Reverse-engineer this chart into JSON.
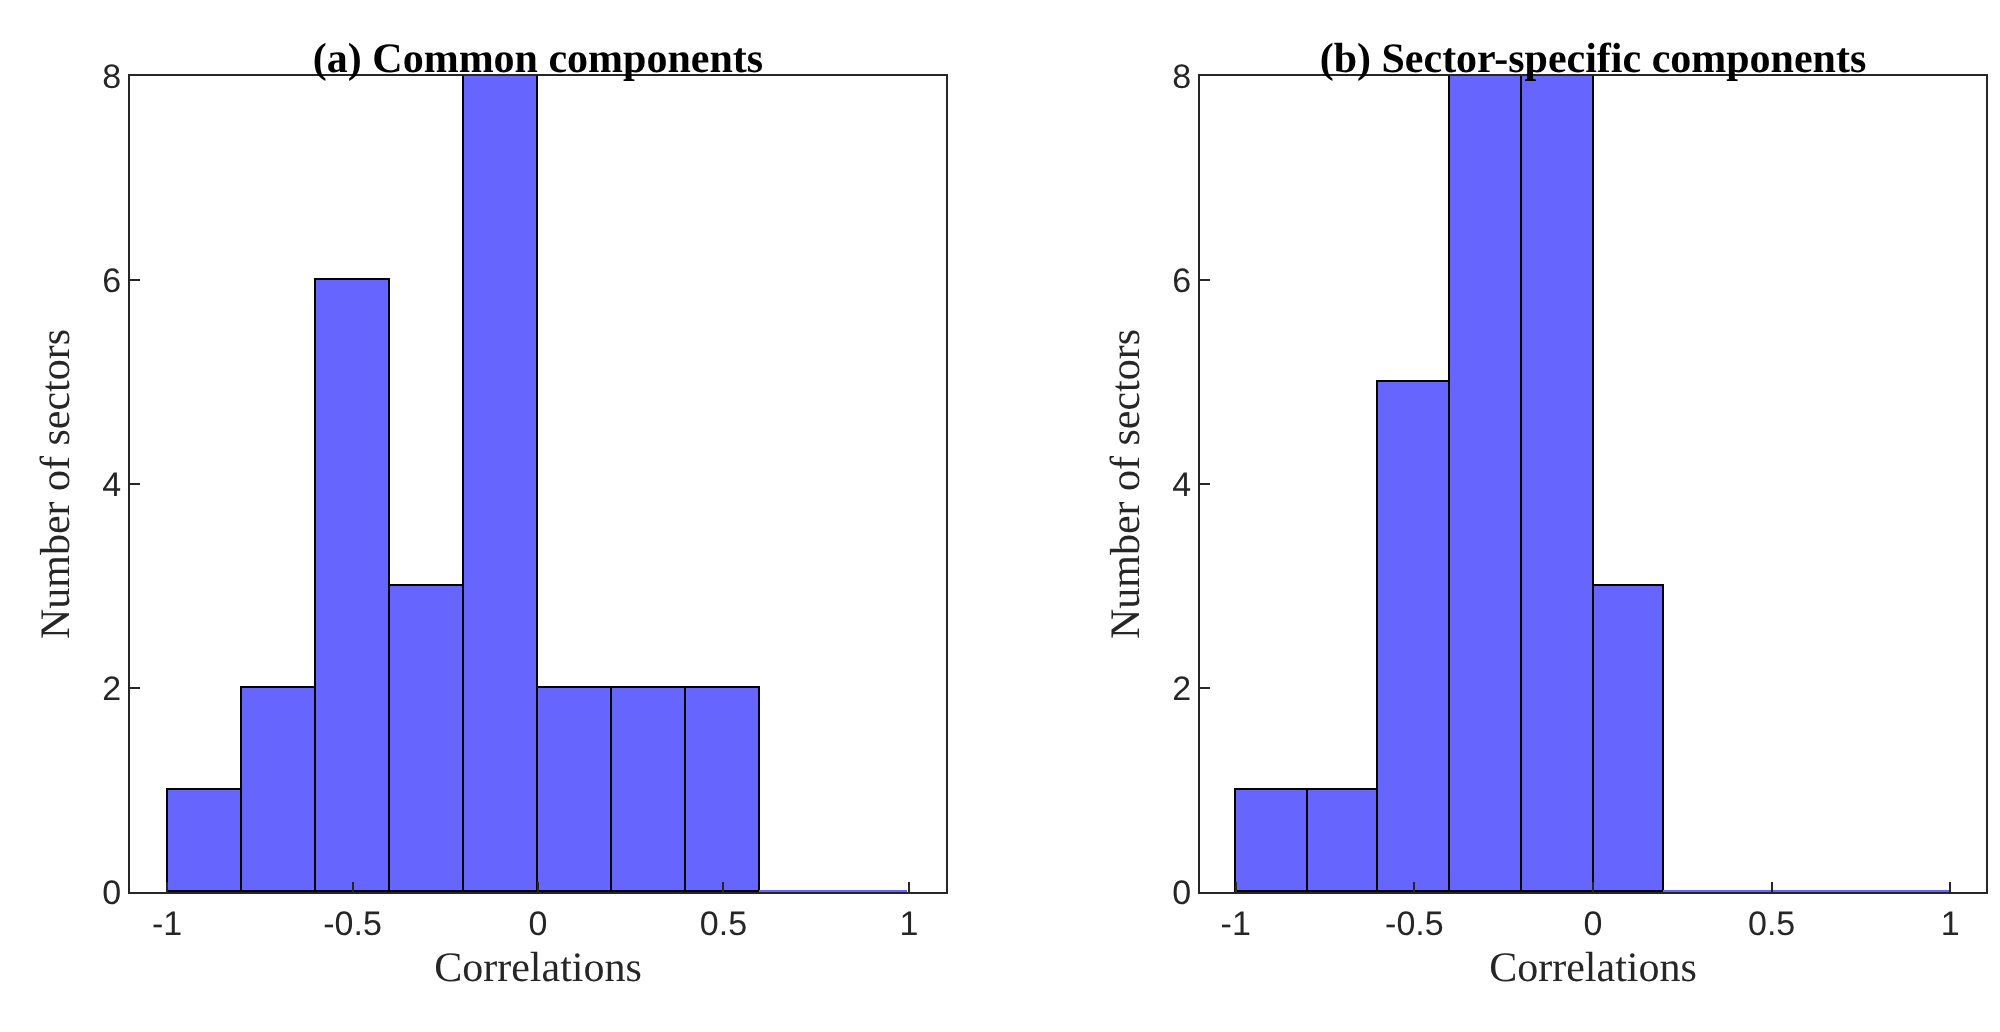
{
  "chart_data": [
    {
      "type": "histogram",
      "title": "(a) Common components",
      "xlabel": "Correlations",
      "ylabel": "Number of sectors",
      "bins": [
        -1,
        -0.8,
        -0.6,
        -0.4,
        -0.2,
        0,
        0.2,
        0.4,
        0.6,
        0.8,
        1
      ],
      "values": [
        1,
        2,
        6,
        3,
        8,
        2,
        2,
        2,
        0,
        0
      ],
      "color": "#6666ff",
      "xlim": [
        -1.1,
        1.1
      ],
      "xticks": [
        -1,
        -0.5,
        0,
        0.5,
        1
      ],
      "ylim": [
        0,
        8
      ],
      "yticks": [
        0,
        2,
        4,
        6,
        8
      ]
    },
    {
      "type": "histogram",
      "title": "(b) Sector-specific components",
      "xlabel": "Correlations",
      "ylabel": "Number of sectors",
      "bins": [
        -1,
        -0.8,
        -0.6,
        -0.4,
        -0.2,
        0,
        0.2,
        0.4,
        0.6,
        0.8,
        1
      ],
      "values": [
        1,
        1,
        5,
        8,
        8,
        3,
        0,
        0,
        0,
        0
      ],
      "color": "#6666ff",
      "xlim": [
        -1.1,
        1.1
      ],
      "xticks": [
        -1,
        -0.5,
        0,
        0.5,
        1
      ],
      "ylim": [
        0,
        8
      ],
      "yticks": [
        0,
        2,
        4,
        6,
        8
      ]
    }
  ]
}
